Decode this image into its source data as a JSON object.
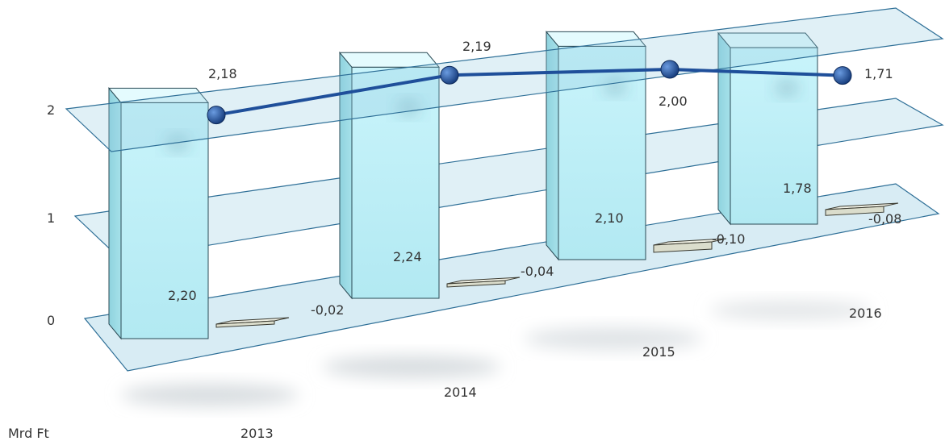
{
  "chart_data": {
    "type": "bar",
    "unit_label": "Mrd Ft",
    "yticks": [
      "0",
      "1",
      "2"
    ],
    "ylim": [
      0,
      2.4
    ],
    "categories": [
      "2013",
      "2014",
      "2015",
      "2016"
    ],
    "series": [
      {
        "values": [
          2.2,
          2.24,
          2.1,
          1.78
        ],
        "labels": [
          "2,20",
          "2,24",
          "2,10",
          "1,78"
        ]
      },
      {
        "values": [
          -0.02,
          -0.04,
          -0.1,
          -0.08
        ],
        "labels": [
          "-0,02",
          "-0,04",
          "-0,10",
          "-0,08"
        ]
      },
      {
        "values": [
          2.18,
          2.19,
          2.0,
          1.71
        ],
        "labels": [
          "2,18",
          "2,19",
          "2,00",
          "1,71"
        ]
      }
    ],
    "colors": {
      "bar": "#bff0f7",
      "small_bar": "#f2f2e6",
      "line": "#1f4f9a",
      "plane": "#8ec8e0",
      "plane_edge": "#2e6f97"
    }
  }
}
